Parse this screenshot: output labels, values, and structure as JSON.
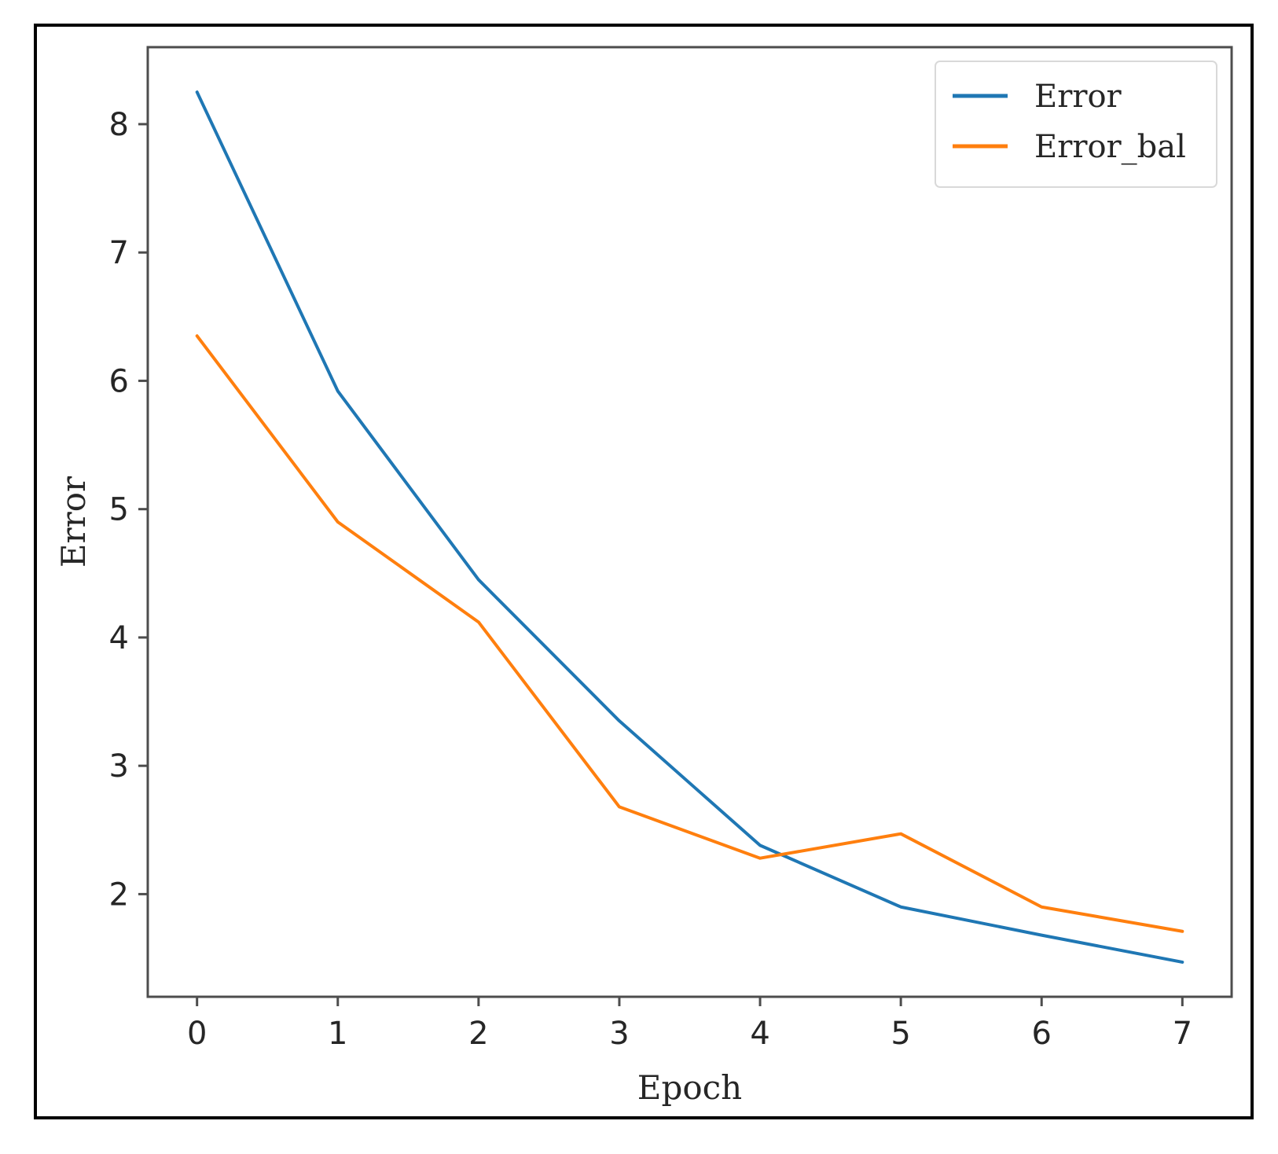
{
  "chart_data": {
    "type": "line",
    "title": "",
    "xlabel": "Epoch",
    "ylabel": "Error",
    "x": [
      0,
      1,
      2,
      3,
      4,
      5,
      6,
      7
    ],
    "x_ticks": [
      "0",
      "1",
      "2",
      "3",
      "4",
      "5",
      "6",
      "7"
    ],
    "y_ticks": [
      "2",
      "3",
      "4",
      "5",
      "6",
      "7",
      "8"
    ],
    "xlim": [
      -0.35,
      7.35
    ],
    "ylim": [
      1.2,
      8.6
    ],
    "grid": false,
    "legend_position": "top-right",
    "series": [
      {
        "name": "Error",
        "color": "#1f77b4",
        "values": [
          8.25,
          5.92,
          4.45,
          3.35,
          2.38,
          1.9,
          1.68,
          1.47
        ]
      },
      {
        "name": "Error_bal",
        "color": "#ff7f0e",
        "values": [
          6.35,
          4.9,
          4.12,
          2.68,
          2.28,
          2.47,
          1.9,
          1.71
        ]
      }
    ]
  }
}
